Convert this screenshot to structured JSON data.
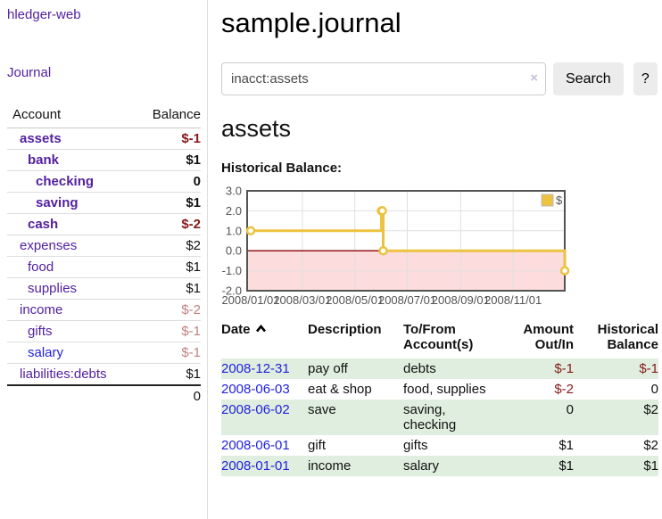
{
  "app": {
    "title": "hledger-web"
  },
  "sidebar": {
    "nav_journal": "Journal",
    "accounts_table": {
      "header_account": "Account",
      "header_balance": "Balance",
      "rows": [
        {
          "name": "assets",
          "depth": 1,
          "bold": true,
          "blue": false,
          "balance": "$-1",
          "tone": "neg"
        },
        {
          "name": "bank",
          "depth": 2,
          "bold": true,
          "blue": false,
          "balance": "$1",
          "tone": ""
        },
        {
          "name": "checking",
          "depth": 3,
          "bold": true,
          "blue": false,
          "balance": "0",
          "tone": ""
        },
        {
          "name": "saving",
          "depth": 3,
          "bold": true,
          "blue": false,
          "balance": "$1",
          "tone": ""
        },
        {
          "name": "cash",
          "depth": 2,
          "bold": true,
          "blue": false,
          "balance": "$-2",
          "tone": "neg"
        },
        {
          "name": "expenses",
          "depth": 1,
          "bold": false,
          "blue": false,
          "balance": "$2",
          "tone": ""
        },
        {
          "name": "food",
          "depth": 2,
          "bold": false,
          "blue": false,
          "balance": "$1",
          "tone": ""
        },
        {
          "name": "supplies",
          "depth": 2,
          "bold": false,
          "blue": false,
          "balance": "$1",
          "tone": ""
        },
        {
          "name": "income",
          "depth": 1,
          "bold": false,
          "blue": false,
          "balance": "$-2",
          "tone": "neg-soft"
        },
        {
          "name": "gifts",
          "depth": 2,
          "bold": false,
          "blue": false,
          "balance": "$-1",
          "tone": "neg-soft"
        },
        {
          "name": "salary",
          "depth": 2,
          "bold": false,
          "blue": true,
          "balance": "$-1",
          "tone": "neg-soft"
        },
        {
          "name": "liabilities:debts",
          "depth": 1,
          "bold": false,
          "blue": false,
          "balance": "$1",
          "tone": ""
        }
      ],
      "total": "0"
    }
  },
  "main": {
    "title": "sample.journal",
    "search": {
      "value": "inacct:assets",
      "clear_glyph": "×",
      "button_label": "Search",
      "help_label": "?"
    },
    "account_heading": "assets",
    "chart_label": "Historical Balance:"
  },
  "chart_data": {
    "type": "line",
    "step": true,
    "series": [
      {
        "name": "$",
        "color": "#edc240",
        "points": [
          {
            "date": "2008-01-01",
            "value": 1
          },
          {
            "date": "2008-06-01",
            "value": 2
          },
          {
            "date": "2008-06-02",
            "value": 2
          },
          {
            "date": "2008-06-03",
            "value": 0
          },
          {
            "date": "2008-12-31",
            "value": -1
          }
        ]
      }
    ],
    "x_range": [
      "2008-01-01",
      "2008-12-31"
    ],
    "ylim": [
      -2,
      3
    ],
    "x_ticks": [
      {
        "date": "2008-01-01",
        "label": "2008/01/01"
      },
      {
        "date": "2008-03-01",
        "label": "2008/03/01"
      },
      {
        "date": "2008-05-01",
        "label": "2008/05/01"
      },
      {
        "date": "2008-07-01",
        "label": "2008/07/01"
      },
      {
        "date": "2008-09-01",
        "label": "2008/09/01"
      },
      {
        "date": "2008-11-01",
        "label": "2008/11/01"
      }
    ],
    "y_ticks": [
      {
        "value": 3,
        "label": "3.0"
      },
      {
        "value": 2,
        "label": "2.0"
      },
      {
        "value": 1,
        "label": "1.0"
      },
      {
        "value": 0,
        "label": "0.0"
      },
      {
        "value": -1,
        "label": "-1.0"
      },
      {
        "value": -2,
        "label": "-2.0"
      }
    ],
    "grid": true,
    "legend": {
      "label": "$",
      "position": "top-right"
    },
    "negative_region_color": "#fcdcdc",
    "zero_line_color": "#8b0000"
  },
  "register": {
    "headers": {
      "date": "Date",
      "sort_icon": "chevron-up",
      "description": "Description",
      "account": "To/From\nAccount(s)",
      "amount": "Amount\nOut/In",
      "balance": "Historical\nBalance"
    },
    "rows": [
      {
        "date": "2008-12-31",
        "description": "pay off",
        "account": "debts",
        "amount": "$-1",
        "balance": "$-1"
      },
      {
        "date": "2008-06-03",
        "description": "eat & shop",
        "account": "food, supplies",
        "amount": "$-2",
        "balance": "0"
      },
      {
        "date": "2008-06-02",
        "description": "save",
        "account": "saving,\nchecking",
        "amount": "0",
        "balance": "$2"
      },
      {
        "date": "2008-06-01",
        "description": "gift",
        "account": "gifts",
        "amount": "$1",
        "balance": "$2"
      },
      {
        "date": "2008-01-01",
        "description": "income",
        "account": "salary",
        "amount": "$1",
        "balance": "$1"
      }
    ]
  },
  "colors": {
    "accent_purple": "#5321a0",
    "link_blue": "#2222dd",
    "negative_red": "#871919",
    "negative_soft_red": "#c28181",
    "row_green": "#dfeede",
    "chart_series_yellow": "#edc240",
    "chart_negative_bg": "#fcdcdc",
    "chart_zero_line": "#8b0000",
    "button_gray": "#ececec"
  }
}
